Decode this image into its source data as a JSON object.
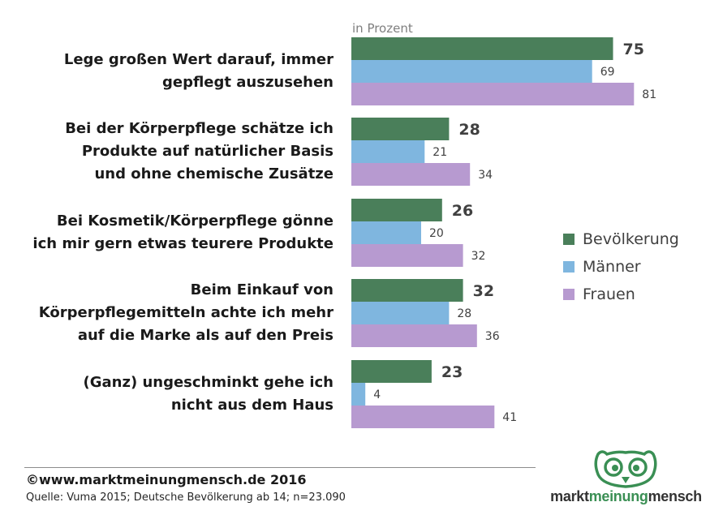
{
  "chart_data": {
    "type": "bar",
    "orientation": "horizontal",
    "unit_label": "in Prozent",
    "categories": [
      "Lege großen Wert darauf, immer\ngepflegt auszusehen",
      "Bei der Körperpflege schätze ich\nProdukte auf natürlicher Basis\nund ohne chemische Zusätze",
      "Bei Kosmetik/Körperpflege gönne\nich mir gern etwas teurere Produkte",
      "Beim Einkauf von\nKörperpflegemitteln achte ich mehr\nauf die Marke als auf den Preis",
      "(Ganz) ungeschminkt gehe ich\nnicht aus dem Haus"
    ],
    "series": [
      {
        "name": "Bevölkerung",
        "color": "#4a7f5a",
        "values": [
          75,
          28,
          26,
          32,
          23
        ]
      },
      {
        "name": "Männer",
        "color": "#7fb6df",
        "values": [
          69,
          21,
          20,
          28,
          4
        ]
      },
      {
        "name": "Frauen",
        "color": "#b79ad0",
        "values": [
          81,
          34,
          32,
          36,
          41
        ]
      }
    ],
    "xlim": [
      0,
      100
    ],
    "legend_position": "right"
  },
  "footer": {
    "copyright": "©www.marktmeinungmensch.de 2016",
    "source": "Quelle: Vuma 2015; Deutsche Bevölkerung ab 14; n=23.090"
  },
  "logo": {
    "word1": "markt",
    "word2": "meinung",
    "word3": "mensch"
  }
}
